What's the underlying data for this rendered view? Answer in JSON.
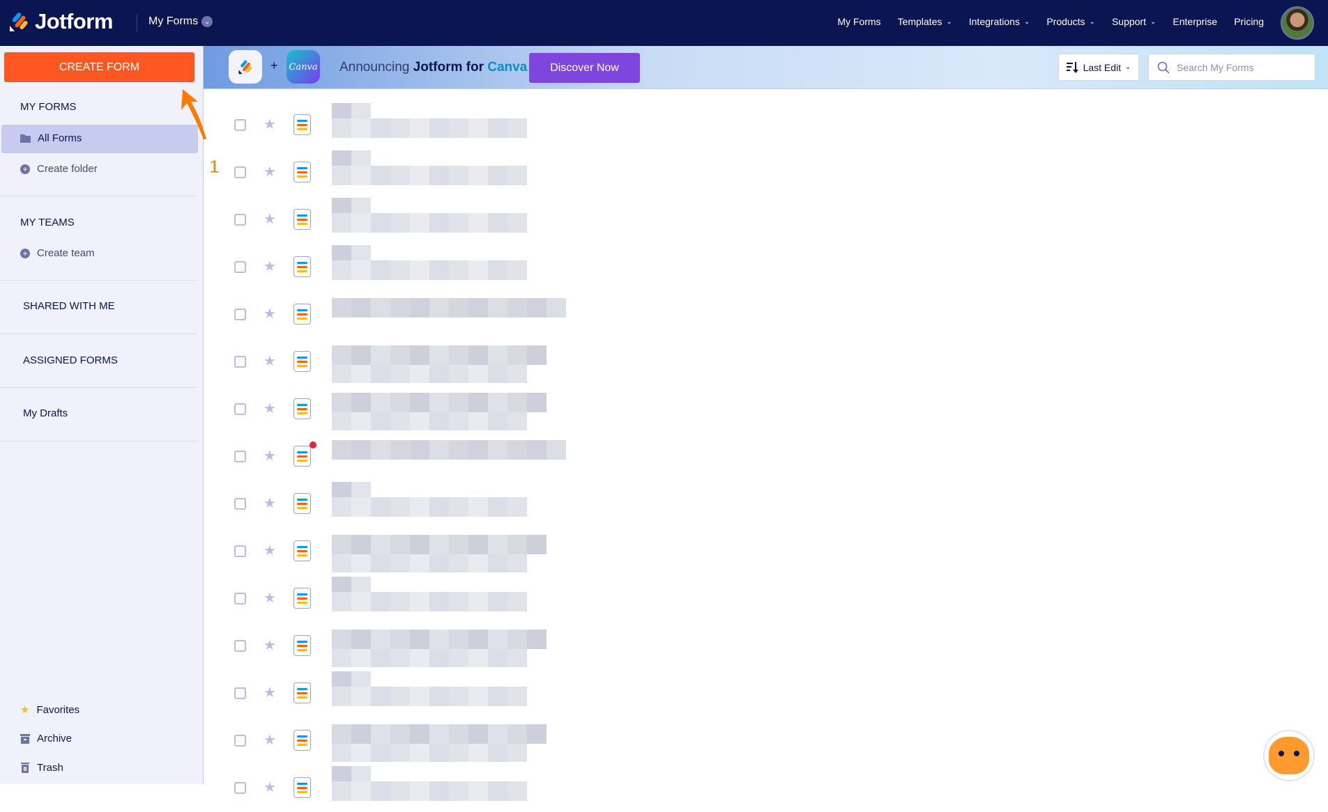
{
  "header": {
    "brand": "Jotform",
    "context_menu": "My Forms",
    "nav": [
      {
        "label": "My Forms",
        "dropdown": false
      },
      {
        "label": "Templates",
        "dropdown": true
      },
      {
        "label": "Integrations",
        "dropdown": true
      },
      {
        "label": "Products",
        "dropdown": true
      },
      {
        "label": "Support",
        "dropdown": true
      },
      {
        "label": "Enterprise",
        "dropdown": false
      },
      {
        "label": "Pricing",
        "dropdown": false
      }
    ]
  },
  "sidebar": {
    "create_button": "CREATE FORM",
    "my_forms_heading": "MY FORMS",
    "all_forms": "All Forms",
    "create_folder": "Create folder",
    "my_teams_heading": "MY TEAMS",
    "create_team": "Create team",
    "shared": "SHARED WITH ME",
    "assigned": "ASSIGNED FORMS",
    "drafts": "My Drafts",
    "favorites": "Favorites",
    "archive": "Archive",
    "trash": "Trash"
  },
  "banner": {
    "plus": "+",
    "canva_logo": "Canva",
    "announce_prefix": "Announcing ",
    "announce_brand": "Jotform for ",
    "announce_partner": "Canva",
    "cta": "Discover Now"
  },
  "toolbar": {
    "sort_label": "Last Edit",
    "search_placeholder": "Search My Forms"
  },
  "annotation": {
    "step": "1",
    "color": "#ff7a00"
  },
  "colors": {
    "accent": "#ff5722",
    "nav_bg": "#0a1551",
    "cta": "#7f46df"
  },
  "forms": [
    {
      "name_blurred": true
    },
    {
      "name_blurred": true
    },
    {
      "name_blurred": true
    },
    {
      "name_blurred": true
    },
    {
      "name_blurred": true
    },
    {
      "name_blurred": true
    },
    {
      "name_blurred": true
    },
    {
      "name_blurred": true,
      "new_badge": true
    },
    {
      "name_blurred": true
    },
    {
      "name_blurred": true
    },
    {
      "name_blurred": true
    },
    {
      "name_blurred": true
    },
    {
      "name_blurred": true
    },
    {
      "name_blurred": true
    },
    {
      "name_blurred": true
    }
  ]
}
